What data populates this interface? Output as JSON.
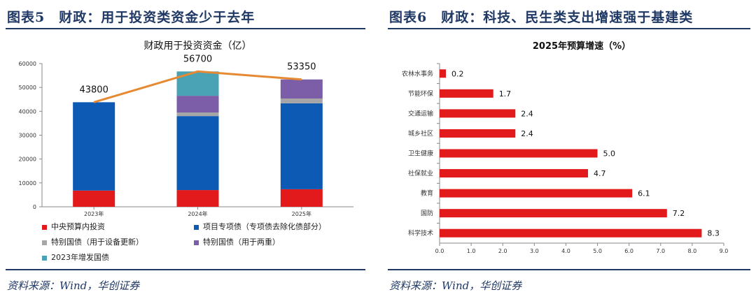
{
  "left": {
    "figure_title": "图表5　财政：用于投资类资金少于去年",
    "source": "资料来源：Wind，华创证券",
    "chart_data": {
      "type": "bar",
      "stacked": true,
      "title": "财政用于投资资金（亿）",
      "categories": [
        "2023年",
        "2024年",
        "2025年"
      ],
      "ylim": [
        0,
        60000
      ],
      "yticks": [
        0,
        10000,
        20000,
        30000,
        40000,
        50000,
        60000
      ],
      "series": [
        {
          "name": "中央预算内投资",
          "color": "#e31a1c",
          "values": [
            6800,
            7000,
            7350
          ]
        },
        {
          "name": "项目专项债（专项债去除化债部分）",
          "color": "#0c5ab4",
          "values": [
            37000,
            31000,
            36000
          ]
        },
        {
          "name": "特别国债（用于设备更新）",
          "color": "#a6a6a6",
          "values": [
            0,
            1500,
            2000
          ]
        },
        {
          "name": "特别国债（用于两重）",
          "color": "#7b5ea7",
          "values": [
            0,
            7000,
            8000
          ]
        },
        {
          "name": "2023年增发国债",
          "color": "#4aa3b5",
          "values": [
            0,
            10200,
            0
          ]
        }
      ],
      "totals": {
        "values": [
          43800,
          56700,
          53350
        ],
        "labels": [
          "43800",
          "56700",
          "53350"
        ],
        "color": "#e58a33"
      }
    }
  },
  "right": {
    "figure_title": "图表6　财政：科技、民生类支出增速强于基建类",
    "source": "资料来源：Wind，华创证券",
    "chart_data": {
      "type": "bar",
      "orientation": "horizontal",
      "title": "2025年预算增速（%）",
      "color": "#e31a1c",
      "categories": [
        "农林水事务",
        "节能环保",
        "交通运输",
        "城乡社区",
        "卫生健康",
        "社保就业",
        "教育",
        "国防",
        "科学技术"
      ],
      "values": [
        0.2,
        1.7,
        2.4,
        2.4,
        5.0,
        4.7,
        6.1,
        7.2,
        8.3
      ],
      "value_labels": [
        "0.2",
        "1.7",
        "2.4",
        "2.4",
        "5.0",
        "4.7",
        "6.1",
        "7.2",
        "8.3"
      ],
      "xlim": [
        0,
        9
      ],
      "xticks": [
        "0.0",
        "1.0",
        "2.0",
        "3.0",
        "4.0",
        "5.0",
        "6.0",
        "7.0",
        "8.0",
        "9.0"
      ]
    }
  }
}
